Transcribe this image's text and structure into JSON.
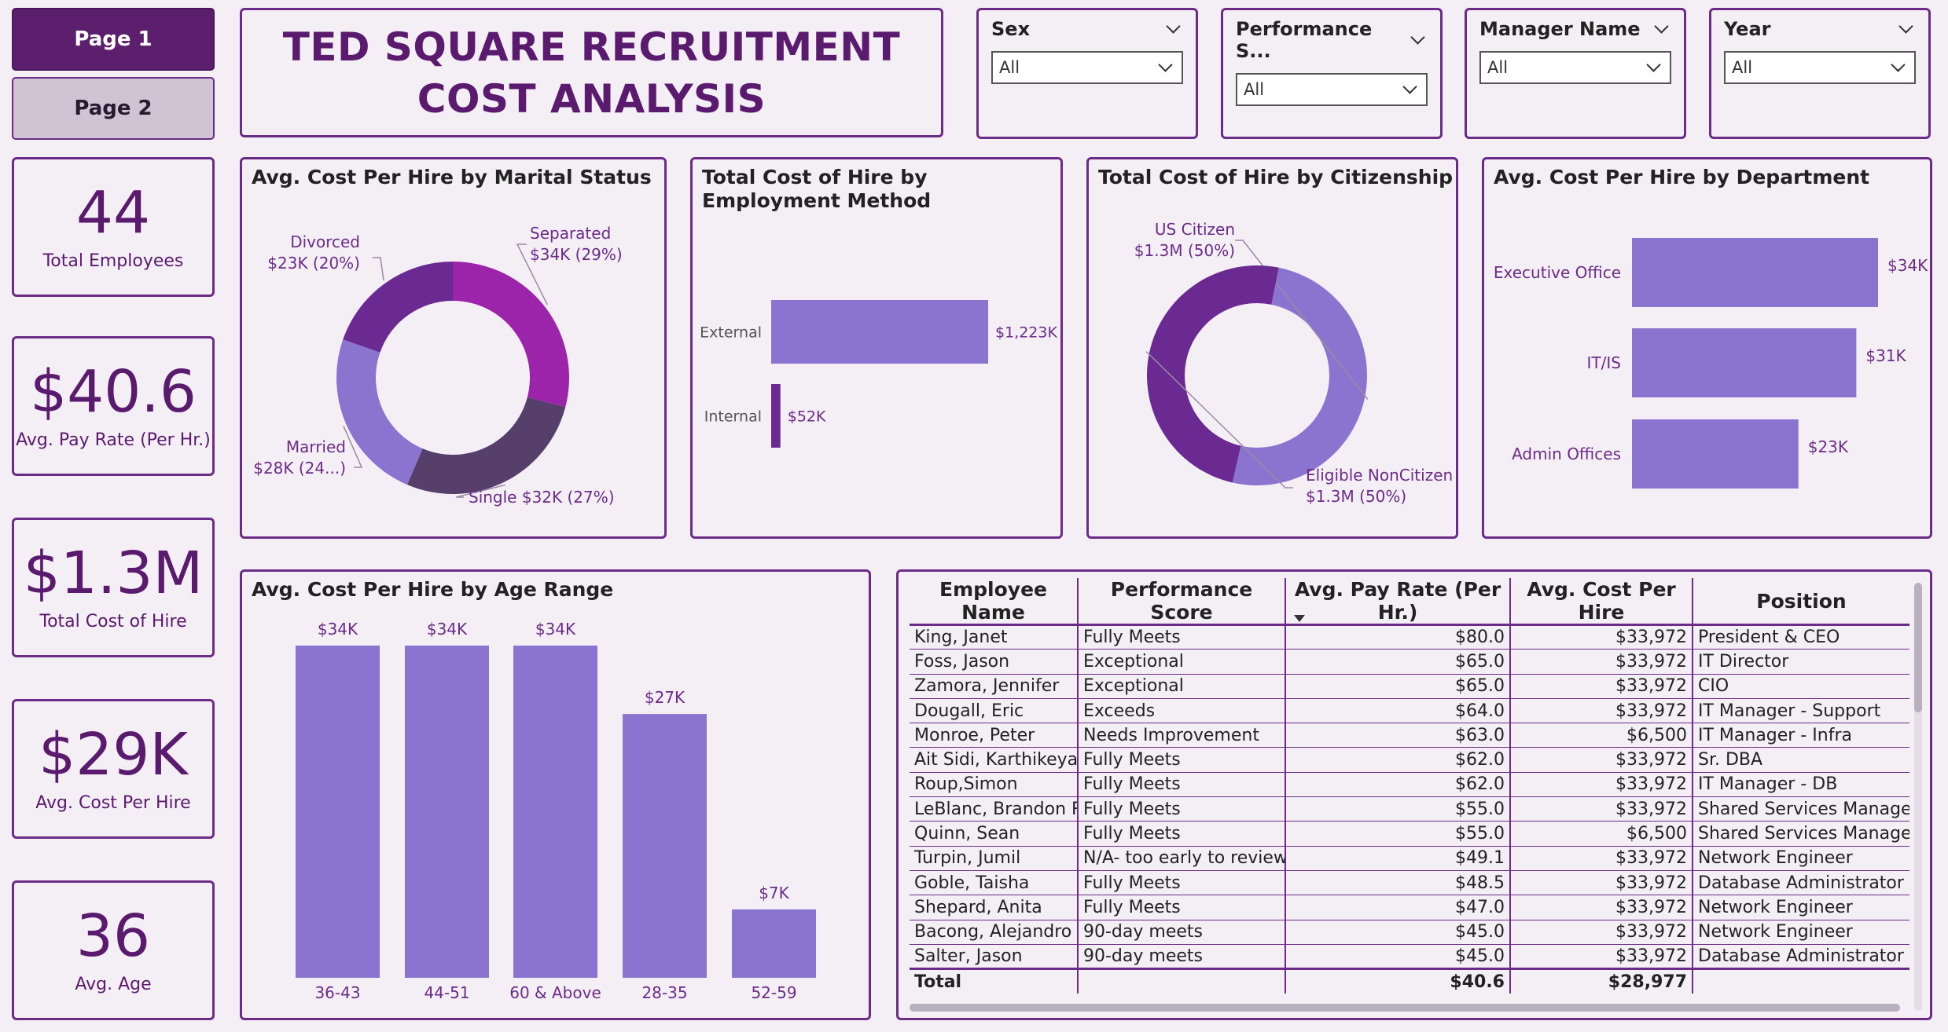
{
  "nav": {
    "page1": "Page 1",
    "page2": "Page 2"
  },
  "title": {
    "line1": "TED SQUARE RECRUITMENT",
    "line2": "COST ANALYSIS"
  },
  "slicers": [
    {
      "label": "Sex",
      "value": "All"
    },
    {
      "label": "Performance S...",
      "value": "All"
    },
    {
      "label": "Manager Name",
      "value": "All"
    },
    {
      "label": "Year",
      "value": "All"
    }
  ],
  "kpis": [
    {
      "value": "44",
      "label": "Total Employees"
    },
    {
      "value": "$40.6",
      "label": "Avg. Pay Rate (Per Hr.)"
    },
    {
      "value": "$1.3M",
      "label": "Total Cost of Hire"
    },
    {
      "value": "$29K",
      "label": "Avg. Cost Per Hire"
    },
    {
      "value": "36",
      "label": "Avg. Age"
    }
  ],
  "colors": {
    "purple_dark": "#5a1a6e",
    "bar": "#8b74cf",
    "magenta": "#9b24aa",
    "donut_dark": "#6a2a91",
    "donut_slate": "#56406b",
    "border": "#6b2c87"
  },
  "chart_data": [
    {
      "type": "pie",
      "title": "Avg. Cost Per Hire by Marital Status",
      "slices": [
        {
          "name": "Separated",
          "value": 34,
          "label": "$34K (29%)",
          "color": "#9b24aa"
        },
        {
          "name": "Single",
          "value": 32,
          "label": "$32K (27%)",
          "color": "#56406b"
        },
        {
          "name": "Married",
          "value": 28,
          "label": "$28K (24...)",
          "color": "#8b74cf"
        },
        {
          "name": "Divorced",
          "value": 23,
          "label": "$23K (20%)",
          "color": "#6a2a91"
        }
      ]
    },
    {
      "type": "bar",
      "orientation": "horizontal",
      "title": "Total Cost of Hire by Employment Method",
      "categories": [
        "External",
        "Internal"
      ],
      "values": [
        1223,
        52
      ],
      "labels": [
        "$1,223K",
        "$52K"
      ],
      "colors": [
        "#8b74cf",
        "#6a2a91"
      ]
    },
    {
      "type": "pie",
      "title": "Total Cost of Hire by Citizenship",
      "slices": [
        {
          "name": "US Citizen",
          "value": 50.4,
          "label": "$1.3M (50%)",
          "color": "#8b74cf"
        },
        {
          "name": "Eligible NonCitizen",
          "value": 49.6,
          "label": "$1.3M (50%)",
          "color": "#6a2a91"
        }
      ]
    },
    {
      "type": "bar",
      "orientation": "horizontal",
      "title": "Avg. Cost Per Hire by Department",
      "categories": [
        "Executive Office",
        "IT/IS",
        "Admin Offices"
      ],
      "values": [
        34,
        31,
        23
      ],
      "labels": [
        "$34K",
        "$31K",
        "$23K"
      ]
    },
    {
      "type": "bar",
      "title": "Avg. Cost Per Hire by Age Range",
      "categories": [
        "36-43",
        "44-51",
        "60 & Above",
        "28-35",
        "52-59"
      ],
      "values": [
        34,
        34,
        34,
        27,
        7
      ],
      "labels": [
        "$34K",
        "$34K",
        "$34K",
        "$27K",
        "$7K"
      ]
    }
  ],
  "table": {
    "columns": [
      "Employee Name",
      "Performance Score",
      "Avg. Pay Rate (Per Hr.)",
      "Avg. Cost Per Hire",
      "Position"
    ],
    "rows": [
      [
        "King, Janet",
        "Fully Meets",
        "$80.0",
        "$33,972",
        "President & CEO"
      ],
      [
        "Foss, Jason",
        "Exceptional",
        "$65.0",
        "$33,972",
        "IT Director"
      ],
      [
        "Zamora, Jennifer",
        "Exceptional",
        "$65.0",
        "$33,972",
        "CIO"
      ],
      [
        "Dougall, Eric",
        "Exceeds",
        "$64.0",
        "$33,972",
        "IT Manager - Support"
      ],
      [
        "Monroe, Peter",
        "Needs Improvement",
        "$63.0",
        "$6,500",
        "IT Manager - Infra"
      ],
      [
        "Ait Sidi, Karthikeyan",
        "Fully Meets",
        "$62.0",
        "$33,972",
        "Sr. DBA"
      ],
      [
        "Roup,Simon",
        "Fully Meets",
        "$62.0",
        "$33,972",
        "IT Manager - DB"
      ],
      [
        "LeBlanc, Brandon R",
        "Fully Meets",
        "$55.0",
        "$33,972",
        "Shared Services Manager"
      ],
      [
        "Quinn, Sean",
        "Fully Meets",
        "$55.0",
        "$6,500",
        "Shared Services Manager"
      ],
      [
        "Turpin, Jumil",
        "N/A- too early to review",
        "$49.1",
        "$33,972",
        "Network Engineer"
      ],
      [
        "Goble, Taisha",
        "Fully Meets",
        "$48.5",
        "$33,972",
        "Database Administrator"
      ],
      [
        "Shepard, Anita",
        "Fully Meets",
        "$47.0",
        "$33,972",
        "Network Engineer"
      ],
      [
        "Bacong, Alejandro",
        "90-day meets",
        "$45.0",
        "$33,972",
        "Network Engineer"
      ],
      [
        "Salter, Jason",
        "90-day meets",
        "$45.0",
        "$33,972",
        "Database Administrator"
      ]
    ],
    "total": [
      "Total",
      "",
      "$40.6",
      "$28,977",
      ""
    ]
  }
}
